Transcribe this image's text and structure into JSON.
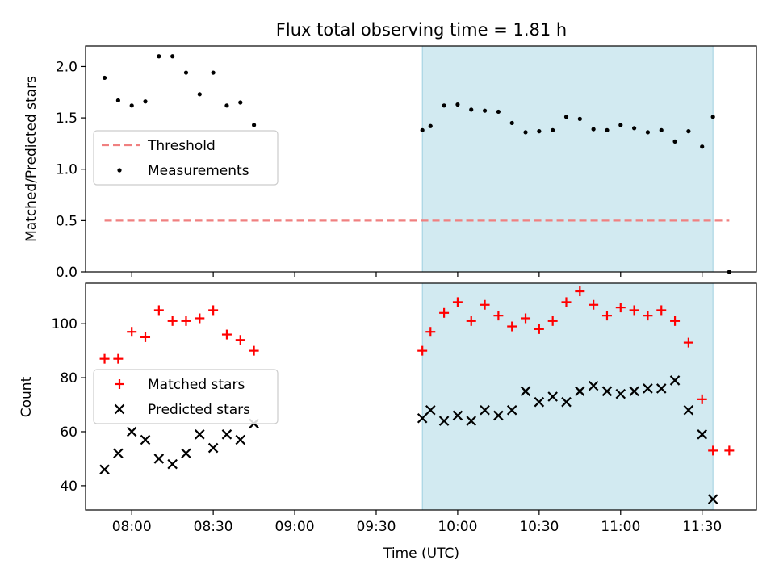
{
  "chart_data": [
    {
      "type": "scatter",
      "title": "Flux total observing time = 1.81 h",
      "xlabel": "",
      "ylabel": "Matched/Predicted stars",
      "xlim": [
        "07:43",
        "11:50"
      ],
      "ylim": [
        0,
        2.2
      ],
      "yticks": [
        "0.0",
        "0.5",
        "1.0",
        "1.5",
        "2.0"
      ],
      "shaded_region": {
        "start": "09:47",
        "end": "11:34",
        "color": "#add8e6"
      },
      "legend_position": "center-left",
      "threshold": {
        "name": "Threshold",
        "value": 0.5,
        "x_start": "07:50",
        "x_end": "11:40",
        "color": "#f08080"
      },
      "series": [
        {
          "name": "Measurements",
          "color": "#000000",
          "x": [
            "07:50",
            "07:55",
            "08:00",
            "08:05",
            "08:10",
            "08:15",
            "08:20",
            "08:25",
            "08:30",
            "08:35",
            "08:40",
            "08:45",
            "09:47",
            "09:50",
            "09:55",
            "10:00",
            "10:05",
            "10:10",
            "10:15",
            "10:20",
            "10:25",
            "10:30",
            "10:35",
            "10:40",
            "10:45",
            "10:50",
            "10:55",
            "11:00",
            "11:05",
            "11:10",
            "11:15",
            "11:20",
            "11:25",
            "11:30",
            "11:34",
            "11:40"
          ],
          "y": [
            1.89,
            1.67,
            1.62,
            1.66,
            2.1,
            2.1,
            1.94,
            1.73,
            1.94,
            1.62,
            1.65,
            1.43,
            1.38,
            1.42,
            1.62,
            1.63,
            1.58,
            1.57,
            1.56,
            1.45,
            1.36,
            1.37,
            1.38,
            1.51,
            1.49,
            1.39,
            1.38,
            1.43,
            1.4,
            1.36,
            1.38,
            1.27,
            1.37,
            1.22,
            1.51,
            0.0
          ]
        }
      ]
    },
    {
      "type": "scatter",
      "xlabel": "Time (UTC)",
      "ylabel": "Count",
      "xlim": [
        "07:43",
        "11:50"
      ],
      "ylim": [
        31,
        115
      ],
      "yticks": [
        "40",
        "60",
        "80",
        "100"
      ],
      "xticks": [
        "08:00",
        "08:30",
        "09:00",
        "09:30",
        "10:00",
        "10:30",
        "11:00",
        "11:30"
      ],
      "shaded_region": {
        "start": "09:47",
        "end": "11:34",
        "color": "#add8e6"
      },
      "legend_position": "center-left",
      "series": [
        {
          "name": "Matched stars",
          "marker": "+",
          "color": "#ff0000",
          "x": [
            "07:50",
            "07:55",
            "08:00",
            "08:05",
            "08:10",
            "08:15",
            "08:20",
            "08:25",
            "08:30",
            "08:35",
            "08:40",
            "08:45",
            "09:47",
            "09:50",
            "09:55",
            "10:00",
            "10:05",
            "10:10",
            "10:15",
            "10:20",
            "10:25",
            "10:30",
            "10:35",
            "10:40",
            "10:45",
            "10:50",
            "10:55",
            "11:00",
            "11:05",
            "11:10",
            "11:15",
            "11:20",
            "11:25",
            "11:30",
            "11:34",
            "11:40"
          ],
          "y": [
            87,
            87,
            97,
            95,
            105,
            101,
            101,
            102,
            105,
            96,
            94,
            90,
            90,
            97,
            104,
            108,
            101,
            107,
            103,
            99,
            102,
            98,
            101,
            108,
            112,
            107,
            103,
            106,
            105,
            103,
            105,
            101,
            93,
            72,
            53,
            53
          ]
        },
        {
          "name": "Predicted stars",
          "marker": "x",
          "color": "#000000",
          "x": [
            "07:50",
            "07:55",
            "08:00",
            "08:05",
            "08:10",
            "08:15",
            "08:20",
            "08:25",
            "08:30",
            "08:35",
            "08:40",
            "08:45",
            "09:47",
            "09:50",
            "09:55",
            "10:00",
            "10:05",
            "10:10",
            "10:15",
            "10:20",
            "10:25",
            "10:30",
            "10:35",
            "10:40",
            "10:45",
            "10:50",
            "10:55",
            "11:00",
            "11:05",
            "11:10",
            "11:15",
            "11:20",
            "11:25",
            "11:30",
            "11:34"
          ],
          "y": [
            46,
            52,
            60,
            57,
            50,
            48,
            52,
            59,
            54,
            59,
            57,
            63,
            65,
            68,
            64,
            66,
            64,
            68,
            66,
            68,
            75,
            71,
            73,
            71,
            75,
            77,
            75,
            74,
            75,
            76,
            76,
            79,
            68,
            59,
            35
          ]
        }
      ]
    }
  ]
}
